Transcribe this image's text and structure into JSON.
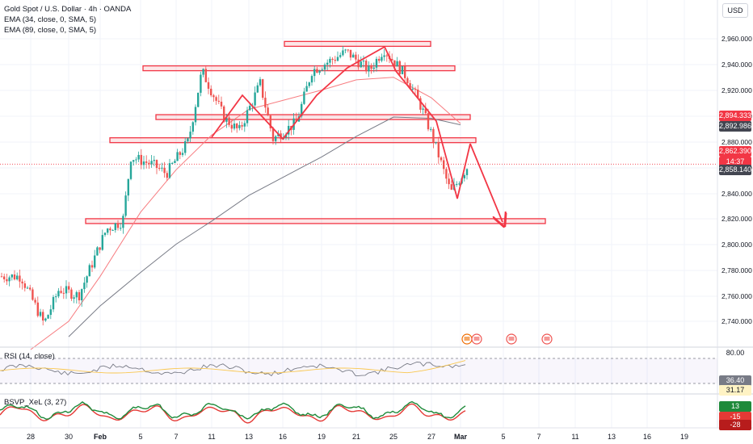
{
  "header": {
    "symbol_title": "Gold Spot / U.S. Dollar · 4h · OANDA",
    "ema1": "EMA (34, close, 0, SMA, 5)",
    "ema2": "EMA (89, close, 0, SMA, 5)",
    "currency": "USD"
  },
  "price_labels": {
    "l1": "2,894.333",
    "l2": "2,892.986",
    "l3": "2,862.390",
    "l3_sub": "14:37",
    "l4": "2,858.140"
  },
  "rsi": {
    "label": "RSI (14, close)",
    "axis_top": "80.00",
    "value1": "36.40",
    "value2": "31.17"
  },
  "bsvp": {
    "label": "BSVP_XeL (3, 27)",
    "v1": "13",
    "v2": "-15",
    "v3": "-28"
  },
  "colors": {
    "up": "#26a69a",
    "down": "#ef5350",
    "zone": "#f23645",
    "ema34": "#f77c80",
    "ema89": "#787b86",
    "bsvp_green": "#1e8a3a",
    "bsvp_red": "#e53935"
  },
  "chart_data": {
    "type": "candlestick",
    "instrument": "Gold Spot / U.S. Dollar",
    "timeframe": "4h",
    "x_tick_labels": [
      "28",
      "30",
      "Feb",
      "5",
      "7",
      "11",
      "13",
      "16",
      "19",
      "21",
      "25",
      "27",
      "Mar",
      "5",
      "7",
      "11",
      "13",
      "16",
      "19"
    ],
    "y_tick_labels": [
      "2,960.000",
      "2,940.000",
      "2,920.000",
      "2,900.000",
      "2,880.000",
      "2,860.000",
      "2,840.000",
      "2,820.000",
      "2,800.000",
      "2,780.000",
      "2,760.000",
      "2,740.000"
    ],
    "y_ticks": [
      2960,
      2940,
      2920,
      2900,
      2880,
      2860,
      2840,
      2820,
      2800,
      2780,
      2760,
      2740
    ],
    "ylim": [
      2725,
      2972
    ],
    "last_price": 2862.39,
    "price_path": [
      [
        "28",
        2775
      ],
      [
        "28",
        2738
      ],
      [
        "30",
        2765
      ],
      [
        "30",
        2760
      ],
      [
        "Feb",
        2782
      ],
      [
        "Feb",
        2812
      ],
      [
        "Feb",
        2818
      ],
      [
        "5",
        2868
      ],
      [
        "5",
        2862
      ],
      [
        "7",
        2855
      ],
      [
        "7",
        2880
      ],
      [
        "11",
        2935
      ],
      [
        "11",
        2898
      ],
      [
        "13",
        2888
      ],
      [
        "13",
        2925
      ],
      [
        "16",
        2882
      ],
      [
        "16",
        2895
      ],
      [
        "19",
        2935
      ],
      [
        "21",
        2950
      ],
      [
        "21",
        2935
      ],
      [
        "25",
        2952
      ],
      [
        "25",
        2930
      ],
      [
        "27",
        2906
      ],
      [
        "27",
        2880
      ],
      [
        "27",
        2850
      ],
      [
        "Mar",
        2840
      ],
      [
        "Mar",
        2862
      ]
    ],
    "ema_34": [
      [
        "28",
        2718
      ],
      [
        "30",
        2740
      ],
      [
        "Feb",
        2775
      ],
      [
        "5",
        2825
      ],
      [
        "7",
        2858
      ],
      [
        "11",
        2885
      ],
      [
        "13",
        2905
      ],
      [
        "16",
        2912
      ],
      [
        "19",
        2920
      ],
      [
        "21",
        2928
      ],
      [
        "25",
        2930
      ],
      [
        "27",
        2914
      ],
      [
        "Mar",
        2894
      ]
    ],
    "ema_89": [
      [
        "30",
        2728
      ],
      [
        "Feb",
        2752
      ],
      [
        "5",
        2778
      ],
      [
        "7",
        2800
      ],
      [
        "11",
        2818
      ],
      [
        "13",
        2838
      ],
      [
        "16",
        2852
      ],
      [
        "19",
        2868
      ],
      [
        "21",
        2884
      ],
      [
        "25",
        2899
      ],
      [
        "27",
        2898
      ],
      [
        "Mar",
        2893
      ]
    ],
    "horizontal_zones": [
      {
        "price": 2956,
        "from": "16",
        "to": "27"
      },
      {
        "price": 2937,
        "from": "7",
        "to": "27"
      },
      {
        "price": 2899,
        "from": "7",
        "to": "Mar"
      },
      {
        "price": 2881,
        "from": "5",
        "to": "Mar"
      },
      {
        "price": 2818,
        "from": "Feb",
        "to": "5"
      }
    ],
    "projection_path": [
      [
        "Mar",
        2882
      ],
      [
        "5",
        2815
      ]
    ],
    "grid": true
  }
}
